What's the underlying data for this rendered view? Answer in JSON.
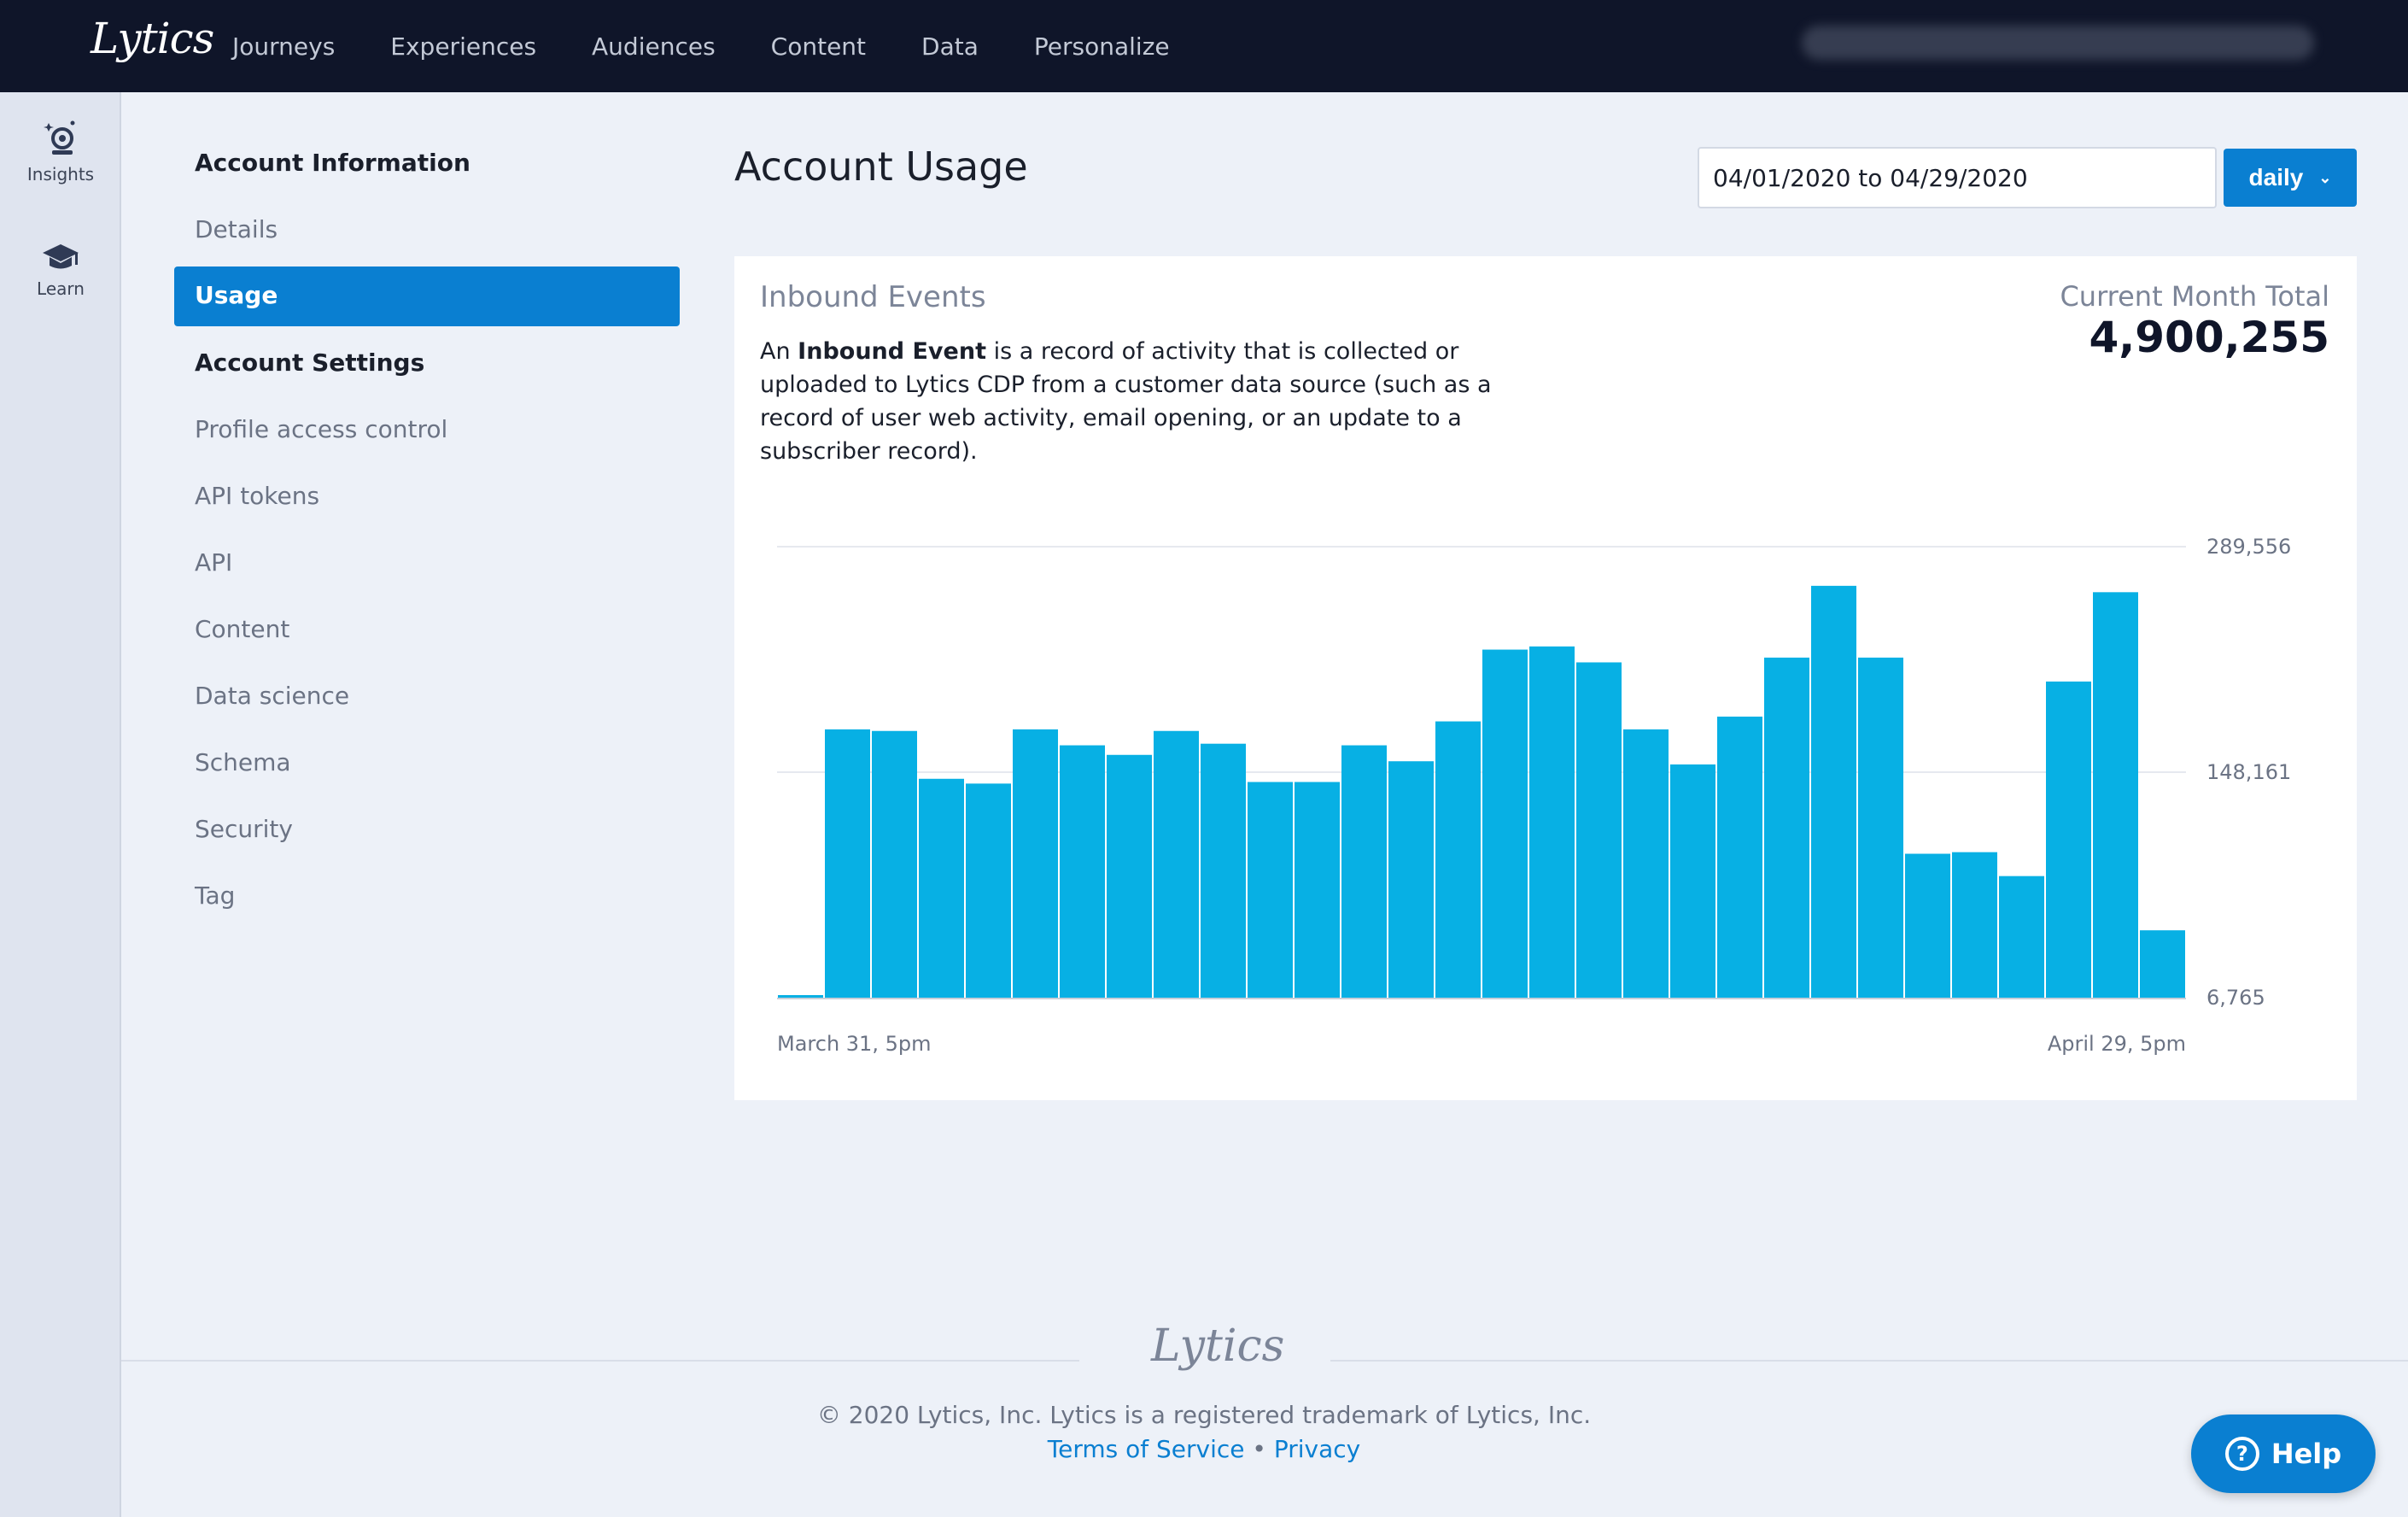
{
  "app": {
    "logo_text": "Lytics"
  },
  "nav": {
    "items": [
      "Journeys",
      "Experiences",
      "Audiences",
      "Content",
      "Data",
      "Personalize"
    ]
  },
  "rail": {
    "items": [
      {
        "label": "Insights",
        "icon": "insights-icon"
      },
      {
        "label": "Learn",
        "icon": "graduation-cap-icon"
      }
    ]
  },
  "sidebar": {
    "section1": "Account Information",
    "details": "Details",
    "usage": "Usage",
    "section2": "Account Settings",
    "items": [
      "Profile access control",
      "API tokens",
      "API",
      "Content",
      "Data science",
      "Schema",
      "Security",
      "Tag"
    ]
  },
  "main": {
    "title": "Account Usage",
    "date_range": "04/01/2020 to 04/29/2020",
    "interval": "daily"
  },
  "card": {
    "title": "Inbound Events",
    "desc_prefix": "An ",
    "desc_bold": "Inbound Event",
    "desc_rest": " is a record of activity that is collected or uploaded to Lytics CDP from a customer data source (such as a record of user web activity, email opening, or an update to a subscriber record).",
    "total_label": "Current Month Total",
    "total_value": "4,900,255"
  },
  "chart_data": {
    "type": "bar",
    "y_ticks": [
      "289,556",
      "148,161",
      "6,765"
    ],
    "ylim": [
      6765,
      289556
    ],
    "x_labels": [
      "March 31, 5pm",
      "April 29, 5pm"
    ],
    "values": [
      8000,
      175000,
      174000,
      144000,
      141000,
      175000,
      165000,
      159000,
      174000,
      166000,
      142000,
      142000,
      165000,
      155000,
      180000,
      225000,
      227000,
      217000,
      175000,
      153000,
      183000,
      220000,
      265000,
      220000,
      97000,
      98000,
      83000,
      205000,
      261000,
      49000
    ],
    "bar_color": "#07b0e4",
    "grid": true
  },
  "footer": {
    "logo_text": "Lytics",
    "copyright": "© 2020 Lytics, Inc. Lytics is a registered trademark of Lytics, Inc.",
    "terms": "Terms of Service",
    "separator": "•",
    "privacy": "Privacy"
  },
  "help": {
    "label": "Help"
  }
}
